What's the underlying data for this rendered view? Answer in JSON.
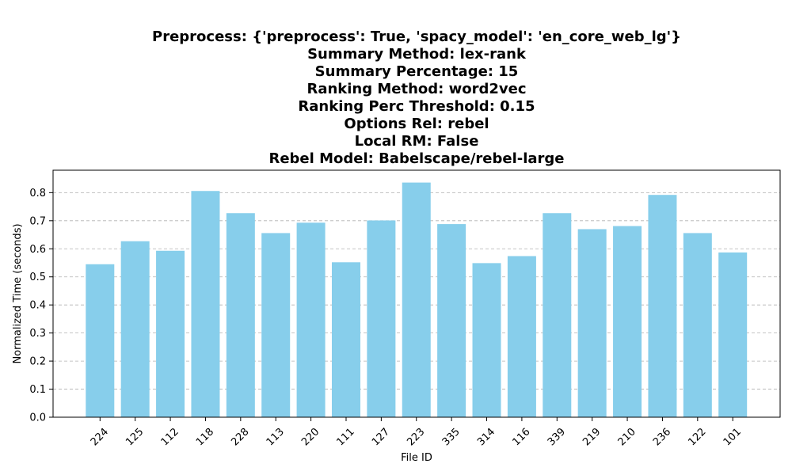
{
  "chart_data": {
    "type": "bar",
    "title_lines": [
      "Preprocess: {'preprocess': True, 'spacy_model': 'en_core_web_lg'}",
      "Summary Method: lex-rank",
      "Summary Percentage: 15",
      "Ranking Method: word2vec",
      "Ranking Perc Threshold: 0.15",
      "Options Rel: rebel",
      "Local RM: False",
      "Rebel Model: Babelscape/rebel-large"
    ],
    "xlabel": "File ID",
    "ylabel": "Normalized Time (seconds)",
    "categories": [
      "224",
      "125",
      "112",
      "118",
      "228",
      "113",
      "220",
      "111",
      "127",
      "223",
      "335",
      "314",
      "116",
      "339",
      "219",
      "210",
      "236",
      "122",
      "101"
    ],
    "values": [
      0.545,
      0.627,
      0.593,
      0.806,
      0.727,
      0.656,
      0.693,
      0.552,
      0.701,
      0.836,
      0.688,
      0.549,
      0.574,
      0.727,
      0.67,
      0.681,
      0.792,
      0.656,
      0.587
    ],
    "ylim": [
      0,
      0.88
    ],
    "yticks": [
      "0.0",
      "0.1",
      "0.2",
      "0.3",
      "0.4",
      "0.5",
      "0.6",
      "0.7",
      "0.8"
    ],
    "grid": "y-dashed",
    "bar_color": "#87ceeb"
  }
}
